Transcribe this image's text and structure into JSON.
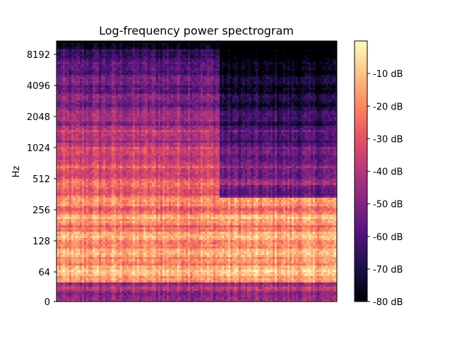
{
  "chart_data": {
    "type": "heatmap",
    "title": "Log-frequency power spectrogram",
    "xlabel": "",
    "ylabel": "Hz",
    "y_scale": "log2 with linear region near 0",
    "yticks": [
      0,
      64,
      128,
      256,
      512,
      1024,
      2048,
      4096,
      8192
    ],
    "ytick_labels": [
      "0",
      "64",
      "128",
      "256",
      "512",
      "1024",
      "2048",
      "4096",
      "8192"
    ],
    "ylim": [
      0,
      11025
    ],
    "x_ticks_shown": false,
    "colormap": "magma",
    "colorbar": {
      "ticks": [
        -10,
        -20,
        -30,
        -40,
        -50,
        -60,
        -70,
        -80
      ],
      "tick_labels": [
        "-10 dB",
        "-20 dB",
        "-30 dB",
        "-40 dB",
        "-50 dB",
        "-60 dB",
        "-70 dB",
        "-80 dB"
      ],
      "range": [
        -80,
        0
      ]
    },
    "colormap_stops": [
      "#000004",
      "#1c1044",
      "#4f127b",
      "#812581",
      "#b5367a",
      "#e55064",
      "#fb8761",
      "#fec287",
      "#fcfdbf"
    ],
    "grid": false
  }
}
